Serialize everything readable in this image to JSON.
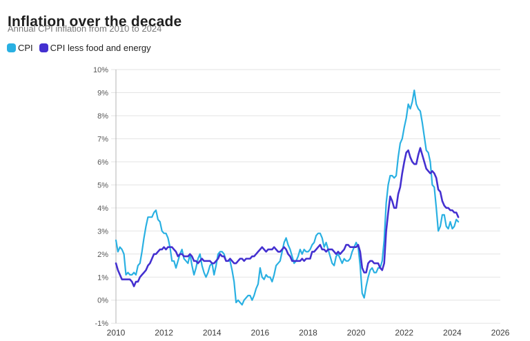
{
  "chart_data": {
    "type": "line",
    "title": "Inflation over the decade",
    "subtitle": "Annual CPI inflation from 2010 to 2024",
    "grid": true,
    "legend_position": "top-left",
    "xlim": [
      2010,
      2026
    ],
    "ylim": [
      -1,
      10
    ],
    "x_ticks": [
      {
        "value": 2010,
        "label": "2010"
      },
      {
        "value": 2012,
        "label": "2012"
      },
      {
        "value": 2014,
        "label": "2014"
      },
      {
        "value": 2016,
        "label": "2016"
      },
      {
        "value": 2018,
        "label": "2018"
      },
      {
        "value": 2020,
        "label": "2020"
      },
      {
        "value": 2022,
        "label": "2022"
      },
      {
        "value": 2024,
        "label": "2024"
      },
      {
        "value": 2026,
        "label": "2026"
      }
    ],
    "y_ticks": [
      {
        "value": -1,
        "label": "-1%"
      },
      {
        "value": 0,
        "label": "0%"
      },
      {
        "value": 1,
        "label": "1%"
      },
      {
        "value": 2,
        "label": "2%"
      },
      {
        "value": 3,
        "label": "3%"
      },
      {
        "value": 4,
        "label": "4%"
      },
      {
        "value": 5,
        "label": "5%"
      },
      {
        "value": 6,
        "label": "6%"
      },
      {
        "value": 7,
        "label": "7%"
      },
      {
        "value": 8,
        "label": "8%"
      },
      {
        "value": 9,
        "label": "9%"
      },
      {
        "value": 10,
        "label": "10%"
      }
    ],
    "series": [
      {
        "name": "CPI",
        "color": "#29b0e2",
        "width": 2.2,
        "start_year": 2010,
        "cadence": "monthly",
        "monthly_values": [
          2.6,
          2.1,
          2.3,
          2.2,
          2.0,
          1.1,
          1.2,
          1.1,
          1.1,
          1.2,
          1.1,
          1.5,
          1.6,
          2.1,
          2.7,
          3.2,
          3.6,
          3.6,
          3.6,
          3.8,
          3.9,
          3.5,
          3.4,
          3.0,
          2.9,
          2.9,
          2.7,
          2.3,
          1.7,
          1.7,
          1.4,
          1.7,
          2.0,
          2.2,
          1.8,
          1.7,
          1.6,
          2.0,
          1.5,
          1.1,
          1.4,
          1.8,
          2.0,
          1.5,
          1.2,
          1.0,
          1.2,
          1.5,
          1.6,
          1.1,
          1.5,
          2.0,
          2.1,
          2.1,
          2.0,
          1.7,
          1.7,
          1.7,
          1.3,
          0.8,
          -0.1,
          0.0,
          -0.1,
          -0.2,
          0.0,
          0.1,
          0.2,
          0.2,
          0.0,
          0.2,
          0.5,
          0.7,
          1.4,
          1.0,
          0.9,
          1.1,
          1.0,
          1.0,
          0.8,
          1.1,
          1.5,
          1.6,
          1.7,
          2.1,
          2.5,
          2.7,
          2.4,
          2.2,
          1.9,
          1.6,
          1.7,
          1.9,
          2.2,
          2.0,
          2.2,
          2.1,
          2.1,
          2.2,
          2.4,
          2.5,
          2.8,
          2.9,
          2.9,
          2.7,
          2.3,
          2.5,
          2.2,
          1.9,
          1.6,
          1.5,
          1.9,
          2.0,
          1.8,
          1.6,
          1.8,
          1.7,
          1.7,
          1.8,
          2.1,
          2.3,
          2.5,
          2.3,
          1.5,
          0.3,
          0.1,
          0.6,
          1.0,
          1.3,
          1.4,
          1.2,
          1.2,
          1.4,
          1.4,
          1.7,
          2.6,
          4.2,
          5.0,
          5.4,
          5.4,
          5.3,
          5.4,
          6.2,
          6.8,
          7.0,
          7.5,
          7.9,
          8.5,
          8.3,
          8.6,
          9.1,
          8.5,
          8.3,
          8.2,
          7.7,
          7.1,
          6.5,
          6.4,
          6.0,
          5.0,
          4.9,
          4.0,
          3.0,
          3.2,
          3.7,
          3.7,
          3.2,
          3.1,
          3.4,
          3.1,
          3.2,
          3.5,
          3.4
        ]
      },
      {
        "name": "CPI less food and energy",
        "color": "#4430d0",
        "width": 2.6,
        "start_year": 2010,
        "cadence": "monthly",
        "monthly_values": [
          1.6,
          1.3,
          1.1,
          0.9,
          0.9,
          0.9,
          0.9,
          0.9,
          0.8,
          0.6,
          0.8,
          0.8,
          1.0,
          1.1,
          1.2,
          1.3,
          1.5,
          1.6,
          1.8,
          2.0,
          2.0,
          2.1,
          2.2,
          2.2,
          2.3,
          2.2,
          2.3,
          2.3,
          2.3,
          2.2,
          2.1,
          1.9,
          2.0,
          2.0,
          1.9,
          1.9,
          1.9,
          2.0,
          1.9,
          1.7,
          1.7,
          1.6,
          1.7,
          1.8,
          1.7,
          1.7,
          1.7,
          1.7,
          1.6,
          1.6,
          1.7,
          1.8,
          2.0,
          1.9,
          1.9,
          1.7,
          1.7,
          1.8,
          1.7,
          1.6,
          1.6,
          1.7,
          1.8,
          1.8,
          1.7,
          1.8,
          1.8,
          1.8,
          1.9,
          1.9,
          2.0,
          2.1,
          2.2,
          2.3,
          2.2,
          2.1,
          2.2,
          2.2,
          2.2,
          2.3,
          2.2,
          2.1,
          2.1,
          2.2,
          2.3,
          2.2,
          2.0,
          1.9,
          1.7,
          1.7,
          1.7,
          1.7,
          1.7,
          1.8,
          1.7,
          1.8,
          1.8,
          1.8,
          2.1,
          2.1,
          2.2,
          2.3,
          2.4,
          2.2,
          2.2,
          2.1,
          2.2,
          2.2,
          2.2,
          2.1,
          2.0,
          2.1,
          2.0,
          2.1,
          2.2,
          2.4,
          2.4,
          2.3,
          2.3,
          2.3,
          2.3,
          2.4,
          2.1,
          1.4,
          1.2,
          1.2,
          1.6,
          1.7,
          1.7,
          1.6,
          1.6,
          1.6,
          1.4,
          1.3,
          1.6,
          3.0,
          3.8,
          4.5,
          4.3,
          4.0,
          4.0,
          4.6,
          4.9,
          5.5,
          6.0,
          6.4,
          6.5,
          6.2,
          6.0,
          5.9,
          5.9,
          6.3,
          6.6,
          6.3,
          6.0,
          5.7,
          5.6,
          5.5,
          5.6,
          5.5,
          5.3,
          4.8,
          4.7,
          4.3,
          4.1,
          4.0,
          4.0,
          3.9,
          3.9,
          3.8,
          3.8,
          3.6
        ]
      }
    ]
  }
}
